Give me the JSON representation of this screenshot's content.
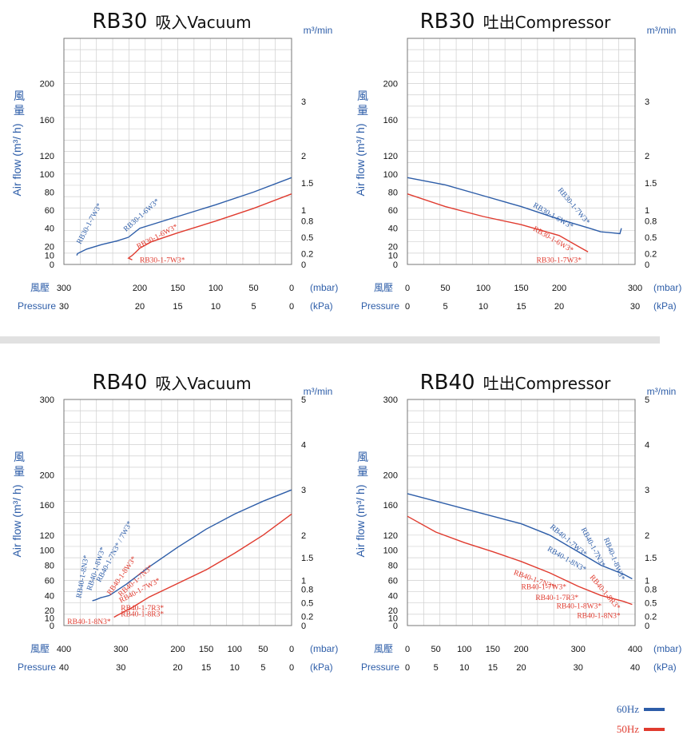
{
  "colors": {
    "hz60": "#2d5da8",
    "hz50": "#e03b2f",
    "grid": "#cfcfcf",
    "title_blue": "#2d5da8"
  },
  "common": {
    "y_label_cn": "風量",
    "y_label_en": "Air flow (m³/ h)",
    "y2_unit": "m³/min",
    "x1_label_cn": "風壓",
    "x2_label": "Pressure",
    "unit_mbar": "(mbar)",
    "unit_kpa": "(kPa)"
  },
  "legend": [
    {
      "label": "60Hz",
      "color": "#2d5da8"
    },
    {
      "label": "50Hz",
      "color": "#e03b2f"
    }
  ],
  "chart_data": [
    {
      "id": "rb30-vac",
      "type": "line",
      "title": "RB30",
      "subtitle": "吸入Vacuum",
      "xdir": "reverse",
      "xlim": [
        0,
        300
      ],
      "ylim": [
        0,
        250
      ],
      "x_ticks": [
        "300",
        "200",
        "150",
        "100",
        "50",
        "0"
      ],
      "x_tick_values": [
        300,
        200,
        150,
        100,
        50,
        0
      ],
      "kpa_ticks": [
        "30",
        "20",
        "15",
        "10",
        "5",
        "0"
      ],
      "y_ticks": [
        0,
        10,
        20,
        40,
        60,
        80,
        100,
        120,
        160,
        200
      ],
      "y2_ticks": [
        {
          "label": "0",
          "v": 0
        },
        {
          "label": "0.2",
          "v": 12
        },
        {
          "label": "0.5",
          "v": 30
        },
        {
          "label": "0.8",
          "v": 48
        },
        {
          "label": "1",
          "v": 60
        },
        {
          "label": "1.5",
          "v": 90
        },
        {
          "label": "2",
          "v": 120
        },
        {
          "label": "3",
          "v": 180
        }
      ],
      "series": [
        {
          "name": "60Hz",
          "color": "#2d5da8",
          "x": [
            0,
            50,
            100,
            150,
            200,
            215
          ],
          "y": [
            96,
            80,
            66,
            53,
            40,
            30
          ]
        },
        {
          "name": "60Hz",
          "color": "#2d5da8",
          "x": [
            215,
            230,
            250,
            270,
            282,
            283
          ],
          "y": [
            30,
            26,
            22,
            17,
            12,
            10
          ]
        },
        {
          "name": "50Hz",
          "color": "#e03b2f",
          "x": [
            0,
            50,
            100,
            150,
            185,
            200
          ],
          "y": [
            78,
            62,
            48,
            35,
            25,
            18
          ]
        },
        {
          "name": "50Hz",
          "color": "#e03b2f",
          "x": [
            200,
            205,
            210,
            215,
            210
          ],
          "y": [
            18,
            14,
            10,
            7,
            5
          ]
        }
      ],
      "labels": [
        {
          "text": "RB30-1-7W3*",
          "x": 278,
          "y": 22,
          "rot": -62,
          "color": "#2d5da8"
        },
        {
          "text": "RB30-1-6W3*",
          "x": 218,
          "y": 36,
          "rot": -42,
          "color": "#2d5da8"
        },
        {
          "text": "RB30-1-6W3*",
          "x": 202,
          "y": 17,
          "rot": -28,
          "color": "#e03b2f"
        },
        {
          "text": "RB30-1-7W3*",
          "x": 200,
          "y": 2,
          "rot": 0,
          "color": "#e03b2f"
        }
      ]
    },
    {
      "id": "rb30-comp",
      "type": "line",
      "title": "RB30",
      "subtitle": "吐出Compressor",
      "xdir": "forward",
      "xlim": [
        0,
        300
      ],
      "ylim": [
        0,
        250
      ],
      "x_ticks": [
        "0",
        "50",
        "100",
        "150",
        "200",
        "300"
      ],
      "x_tick_values": [
        0,
        50,
        100,
        150,
        200,
        300
      ],
      "kpa_ticks": [
        "0",
        "5",
        "10",
        "15",
        "20",
        "30"
      ],
      "y_ticks": [
        0,
        10,
        20,
        40,
        60,
        80,
        100,
        120,
        160,
        200
      ],
      "y2_ticks": [
        {
          "label": "0",
          "v": 0
        },
        {
          "label": "0.2",
          "v": 12
        },
        {
          "label": "0.5",
          "v": 30
        },
        {
          "label": "0.8",
          "v": 48
        },
        {
          "label": "1",
          "v": 60
        },
        {
          "label": "1.5",
          "v": 90
        },
        {
          "label": "2",
          "v": 120
        },
        {
          "label": "3",
          "v": 180
        }
      ],
      "series": [
        {
          "name": "60Hz",
          "color": "#2d5da8",
          "x": [
            0,
            50,
            100,
            150,
            200,
            240,
            255
          ],
          "y": [
            96,
            88,
            76,
            64,
            50,
            40,
            36
          ]
        },
        {
          "name": "60Hz",
          "color": "#2d5da8",
          "x": [
            255,
            270,
            280,
            282
          ],
          "y": [
            36,
            35,
            34,
            40
          ]
        },
        {
          "name": "50Hz",
          "color": "#e03b2f",
          "x": [
            0,
            50,
            100,
            150,
            200,
            225,
            238
          ],
          "y": [
            78,
            64,
            53,
            44,
            32,
            20,
            14
          ]
        }
      ],
      "labels": [
        {
          "text": "RB30-1-7W3*",
          "x": 198,
          "y": 82,
          "rot": 50,
          "color": "#2d5da8"
        },
        {
          "text": "RB30-1-6W3*",
          "x": 165,
          "y": 64,
          "rot": 30,
          "color": "#2d5da8"
        },
        {
          "text": "RB30-1-6W3*",
          "x": 165,
          "y": 38,
          "rot": 30,
          "color": "#e03b2f"
        },
        {
          "text": "RB30-1-7W3*",
          "x": 170,
          "y": 2,
          "rot": 0,
          "color": "#e03b2f"
        }
      ]
    },
    {
      "id": "rb40-vac",
      "type": "line",
      "title": "RB40",
      "subtitle": "吸入Vacuum",
      "xdir": "reverse",
      "xlim": [
        0,
        400
      ],
      "ylim": [
        0,
        300
      ],
      "x_ticks": [
        "400",
        "300",
        "200",
        "150",
        "100",
        "50",
        "0"
      ],
      "x_tick_values": [
        400,
        300,
        200,
        150,
        100,
        50,
        0
      ],
      "kpa_ticks": [
        "40",
        "30",
        "20",
        "15",
        "10",
        "5",
        "0"
      ],
      "y_ticks": [
        0,
        10,
        20,
        40,
        60,
        80,
        100,
        120,
        160,
        200,
        300
      ],
      "y2_ticks": [
        {
          "label": "0",
          "v": 0
        },
        {
          "label": "0.2",
          "v": 12
        },
        {
          "label": "0.5",
          "v": 30
        },
        {
          "label": "0.8",
          "v": 48
        },
        {
          "label": "1",
          "v": 60
        },
        {
          "label": "1.5",
          "v": 90
        },
        {
          "label": "2",
          "v": 120
        },
        {
          "label": "3",
          "v": 180
        },
        {
          "label": "4",
          "v": 240
        },
        {
          "label": "5",
          "v": 300
        }
      ],
      "series": [
        {
          "name": "60Hz",
          "color": "#2d5da8",
          "x": [
            0,
            50,
            100,
            150,
            200,
            250,
            290,
            320
          ],
          "y": [
            180,
            165,
            148,
            128,
            104,
            78,
            55,
            40
          ]
        },
        {
          "name": "60Hz",
          "color": "#2d5da8",
          "x": [
            320,
            335,
            345,
            350
          ],
          "y": [
            40,
            37,
            34,
            33
          ]
        },
        {
          "name": "50Hz",
          "color": "#e03b2f",
          "x": [
            0,
            50,
            100,
            150,
            200,
            250,
            280,
            300
          ],
          "y": [
            148,
            120,
            96,
            74,
            56,
            38,
            24,
            16
          ]
        },
        {
          "name": "50Hz",
          "color": "#e03b2f",
          "x": [
            300,
            305,
            310,
            312
          ],
          "y": [
            16,
            14,
            12,
            11
          ]
        }
      ],
      "labels": [
        {
          "text": "RB40-1-8N3*",
          "x": 370,
          "y": 36,
          "rot": -80,
          "color": "#2d5da8"
        },
        {
          "text": "RB40-1-8W3*",
          "x": 352,
          "y": 46,
          "rot": -72,
          "color": "#2d5da8"
        },
        {
          "text": "RB40-1-7N3* / 7W3*",
          "x": 336,
          "y": 57,
          "rot": -62,
          "color": "#2d5da8"
        },
        {
          "text": "RB40-1-8W3*",
          "x": 318,
          "y": 40,
          "rot": -55,
          "color": "#e03b2f"
        },
        {
          "text": "RB40-1-7N3*",
          "x": 300,
          "y": 38,
          "rot": -42,
          "color": "#e03b2f"
        },
        {
          "text": "RB40-1-7W3*",
          "x": 300,
          "y": 30,
          "rot": -28,
          "color": "#e03b2f"
        },
        {
          "text": "RB40-1-7R3*",
          "x": 300,
          "y": 20,
          "rot": 0,
          "color": "#e03b2f"
        },
        {
          "text": "RB40-1-8R3*",
          "x": 300,
          "y": 12,
          "rot": 0,
          "color": "#e03b2f"
        },
        {
          "text": "RB40-1-8N3*",
          "x": 394,
          "y": 2,
          "rot": 0,
          "color": "#e03b2f"
        }
      ]
    },
    {
      "id": "rb40-comp",
      "type": "line",
      "title": "RB40",
      "subtitle": "吐出Compressor",
      "xdir": "forward",
      "xlim": [
        0,
        400
      ],
      "ylim": [
        0,
        300
      ],
      "x_ticks": [
        "0",
        "50",
        "100",
        "150",
        "200",
        "300",
        "400"
      ],
      "x_tick_values": [
        0,
        50,
        100,
        150,
        200,
        300,
        400
      ],
      "kpa_ticks": [
        "0",
        "5",
        "10",
        "15",
        "20",
        "30",
        "40"
      ],
      "y_ticks": [
        0,
        10,
        20,
        40,
        60,
        80,
        100,
        120,
        160,
        200,
        300
      ],
      "y2_ticks": [
        {
          "label": "0",
          "v": 0
        },
        {
          "label": "0.2",
          "v": 12
        },
        {
          "label": "0.5",
          "v": 30
        },
        {
          "label": "0.8",
          "v": 48
        },
        {
          "label": "1",
          "v": 60
        },
        {
          "label": "1.5",
          "v": 90
        },
        {
          "label": "2",
          "v": 120
        },
        {
          "label": "3",
          "v": 180
        },
        {
          "label": "4",
          "v": 240
        },
        {
          "label": "5",
          "v": 300
        }
      ],
      "series": [
        {
          "name": "60Hz",
          "color": "#2d5da8",
          "x": [
            0,
            50,
            100,
            150,
            200,
            250,
            300,
            340,
            380,
            395
          ],
          "y": [
            175,
            165,
            155,
            145,
            135,
            120,
            98,
            80,
            68,
            62
          ]
        },
        {
          "name": "50Hz",
          "color": "#e03b2f",
          "x": [
            0,
            50,
            100,
            150,
            200,
            250,
            300,
            340,
            380,
            395
          ],
          "y": [
            145,
            124,
            110,
            98,
            85,
            70,
            52,
            40,
            32,
            28
          ]
        }
      ],
      "labels": [
        {
          "text": "RB40-1-8W3*",
          "x": 345,
          "y": 115,
          "rot": 68,
          "color": "#2d5da8"
        },
        {
          "text": "RB40-1-7N3*",
          "x": 305,
          "y": 128,
          "rot": 62,
          "color": "#2d5da8"
        },
        {
          "text": "RB40-1-7W3*",
          "x": 250,
          "y": 130,
          "rot": 40,
          "color": "#2d5da8"
        },
        {
          "text": "RB40-1-8N3*",
          "x": 245,
          "y": 100,
          "rot": 30,
          "color": "#2d5da8"
        },
        {
          "text": "RB40-1-8R3*",
          "x": 320,
          "y": 64,
          "rot": 50,
          "color": "#e03b2f"
        },
        {
          "text": "RB40-1-7N3*",
          "x": 186,
          "y": 68,
          "rot": 20,
          "color": "#e03b2f"
        },
        {
          "text": "RB40-1-7W3*",
          "x": 200,
          "y": 48,
          "rot": 0,
          "color": "#e03b2f"
        },
        {
          "text": "RB40-1-7R3*",
          "x": 225,
          "y": 34,
          "rot": 0,
          "color": "#e03b2f"
        },
        {
          "text": "RB40-1-8W3*",
          "x": 262,
          "y": 23,
          "rot": 0,
          "color": "#e03b2f"
        },
        {
          "text": "RB40-1-8N3*",
          "x": 298,
          "y": 10,
          "rot": 0,
          "color": "#e03b2f"
        }
      ]
    }
  ]
}
